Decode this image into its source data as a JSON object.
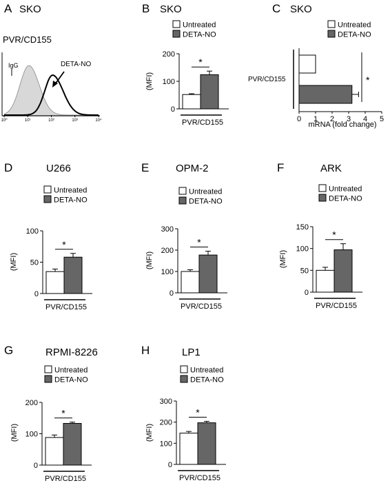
{
  "colors": {
    "untreated": "#ffffff",
    "treated": "#666666",
    "axis": "#000000",
    "isotype": "#9a9a9a",
    "isotype_fill": "#d8d8d8"
  },
  "chart_data": [
    {
      "panel": "A",
      "type": "histogram",
      "title": "SKO",
      "subtitle": "PVR/CD155",
      "x_scale": "log",
      "xlim": [
        1,
        10000
      ],
      "x_tick_labels": [
        "10⁰",
        "10¹",
        "10²",
        "10³",
        "10⁴"
      ],
      "annotations": [
        {
          "text": "IgG"
        },
        {
          "text": "DETA-NO"
        }
      ]
    },
    {
      "panel": "B",
      "type": "bar",
      "title": "SKO",
      "ylabel": "(MFI)",
      "categories": [
        "PVR/CD155"
      ],
      "ylim": [
        0,
        200
      ],
      "yticks": [
        0,
        100,
        200
      ],
      "series": [
        {
          "name": "Untreated",
          "values": [
            52
          ],
          "errors": [
            3
          ]
        },
        {
          "name": "DETA-NO",
          "values": [
            124
          ],
          "errors": [
            13
          ]
        }
      ],
      "significance": "*",
      "legend": "top"
    },
    {
      "panel": "C",
      "type": "bar",
      "orientation": "horizontal",
      "title": "SKO",
      "xlabel": "mRNA (fold change)",
      "xlim": [
        0,
        5
      ],
      "xticks": [
        0,
        1,
        2,
        3,
        4,
        5
      ],
      "categories": [
        "PVR/CD155"
      ],
      "series": [
        {
          "name": "Untreated",
          "values": [
            1
          ],
          "errors": [
            0
          ]
        },
        {
          "name": "DETA-NO",
          "values": [
            3.2
          ],
          "errors": [
            0.4
          ]
        }
      ],
      "significance": "*",
      "legend": "top"
    },
    {
      "panel": "D",
      "type": "bar",
      "title": "U266",
      "ylabel": "(MFI)",
      "categories": [
        "PVR/CD155"
      ],
      "ylim": [
        0,
        100
      ],
      "yticks": [
        0,
        50,
        100
      ],
      "series": [
        {
          "name": "Untreated",
          "values": [
            35
          ],
          "errors": [
            4
          ]
        },
        {
          "name": "DETA-NO",
          "values": [
            58
          ],
          "errors": [
            6
          ]
        }
      ],
      "significance": "*",
      "legend": "top"
    },
    {
      "panel": "E",
      "type": "bar",
      "title": "OPM-2",
      "ylabel": "(MFI)",
      "categories": [
        "PVR/CD155"
      ],
      "ylim": [
        0,
        300
      ],
      "yticks": [
        0,
        100,
        200,
        300
      ],
      "series": [
        {
          "name": "Untreated",
          "values": [
            100
          ],
          "errors": [
            8
          ]
        },
        {
          "name": "DETA-NO",
          "values": [
            177
          ],
          "errors": [
            18
          ]
        }
      ],
      "significance": "*",
      "legend": "top"
    },
    {
      "panel": "F",
      "type": "bar",
      "title": "ARK",
      "ylabel": "(MFI)",
      "categories": [
        "PVR/CD155"
      ],
      "ylim": [
        0,
        150
      ],
      "yticks": [
        0,
        50,
        100,
        150
      ],
      "series": [
        {
          "name": "Untreated",
          "values": [
            50
          ],
          "errors": [
            7
          ]
        },
        {
          "name": "DETA-NO",
          "values": [
            97
          ],
          "errors": [
            14
          ]
        }
      ],
      "significance": "*",
      "legend": "top"
    },
    {
      "panel": "G",
      "type": "bar",
      "title": "RPMI-8226",
      "ylabel": "(MFI)",
      "categories": [
        "PVR/CD155"
      ],
      "ylim": [
        0,
        200
      ],
      "yticks": [
        0,
        100,
        200
      ],
      "series": [
        {
          "name": "Untreated",
          "values": [
            88
          ],
          "errors": [
            8
          ]
        },
        {
          "name": "DETA-NO",
          "values": [
            133
          ],
          "errors": [
            4
          ]
        }
      ],
      "significance": "*",
      "legend": "top"
    },
    {
      "panel": "H",
      "type": "bar",
      "title": "LP1",
      "ylabel": "(MFI)",
      "categories": [
        "PVR/CD155"
      ],
      "ylim": [
        0,
        300
      ],
      "yticks": [
        0,
        100,
        200,
        300
      ],
      "series": [
        {
          "name": "Untreated",
          "values": [
            148
          ],
          "errors": [
            8
          ]
        },
        {
          "name": "DETA-NO",
          "values": [
            197
          ],
          "errors": [
            7
          ]
        }
      ],
      "significance": "*",
      "legend": "top"
    }
  ]
}
